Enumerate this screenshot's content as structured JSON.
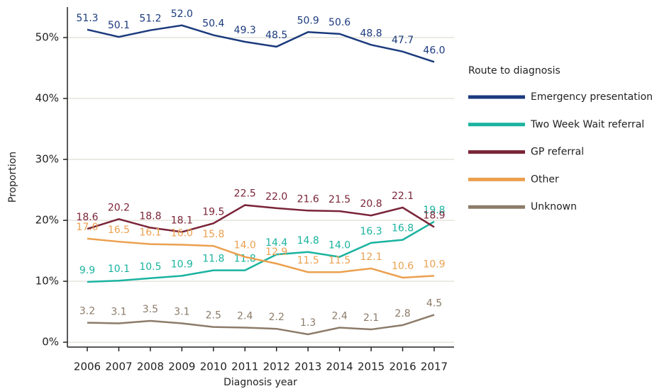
{
  "chart_data": {
    "type": "line",
    "x_label": "Diagnosis year",
    "y_label": "Proportion",
    "categories": [
      "2006",
      "2007",
      "2008",
      "2009",
      "2010",
      "2011",
      "2012",
      "2013",
      "2014",
      "2015",
      "2016",
      "2017"
    ],
    "ylim": [
      -0.8,
      55
    ],
    "yticks": [
      {
        "value": 0,
        "label": "0%"
      },
      {
        "value": 10,
        "label": "10%"
      },
      {
        "value": 20,
        "label": "20%"
      },
      {
        "value": 30,
        "label": "30%"
      },
      {
        "value": 40,
        "label": "40%"
      },
      {
        "value": 50,
        "label": "50%"
      }
    ],
    "grid": true,
    "legend_title": "Route to diagnosis",
    "legend_position": "right",
    "series": [
      {
        "name": "Emergency presentation",
        "color": "#1b3a7d",
        "values": [
          51.3,
          50.1,
          51.2,
          52.0,
          50.4,
          49.3,
          48.5,
          50.9,
          50.6,
          48.8,
          47.7,
          46.0
        ],
        "value_labels": [
          "51.3",
          "50.1",
          "51.2",
          "52.0",
          "50.4",
          "49.3",
          "48.5",
          "50.9",
          "50.6",
          "48.8",
          "47.7",
          "46.0"
        ]
      },
      {
        "name": "Two Week Wait referral",
        "color": "#1ab39f",
        "values": [
          9.9,
          10.1,
          10.5,
          10.9,
          11.8,
          11.8,
          14.4,
          14.8,
          14.0,
          16.3,
          16.8,
          19.8
        ],
        "value_labels": [
          "9.9",
          "10.1",
          "10.5",
          "10.9",
          "11.8",
          "11.8",
          "14.4",
          "14.8",
          "14.0",
          "16.3",
          "16.8",
          "19.8"
        ]
      },
      {
        "name": "GP referral",
        "color": "#7a2438",
        "values": [
          18.6,
          20.2,
          18.8,
          18.1,
          19.5,
          22.5,
          22.0,
          21.6,
          21.5,
          20.8,
          22.1,
          18.9
        ],
        "value_labels": [
          "18.6",
          "20.2",
          "18.8",
          "18.1",
          "19.5",
          "22.5",
          "22.0",
          "21.6",
          "21.5",
          "20.8",
          "22.1",
          "18.9"
        ]
      },
      {
        "name": "Other",
        "color": "#eba04f",
        "values": [
          17.0,
          16.5,
          16.1,
          16.0,
          15.8,
          14.0,
          12.9,
          11.5,
          11.5,
          12.1,
          10.6,
          10.9
        ],
        "value_labels": [
          "17.0",
          "16.5",
          "16.1",
          "16.0",
          "15.8",
          "14.0",
          "12.9",
          "11.5",
          "11.5",
          "12.1",
          "10.6",
          "10.9"
        ]
      },
      {
        "name": "Unknown",
        "color": "#8c7b69",
        "values": [
          3.2,
          3.1,
          3.5,
          3.1,
          2.5,
          2.4,
          2.2,
          1.3,
          2.4,
          2.1,
          2.8,
          4.5
        ],
        "value_labels": [
          "3.2",
          "3.1",
          "3.5",
          "3.1",
          "2.5",
          "2.4",
          "2.2",
          "1.3",
          "2.4",
          "2.1",
          "2.8",
          "4.5"
        ]
      }
    ]
  }
}
